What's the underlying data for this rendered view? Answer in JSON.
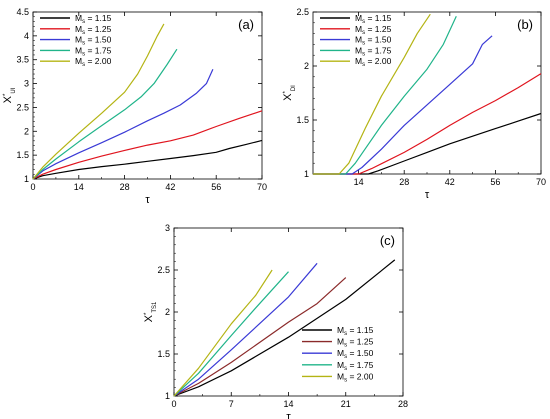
{
  "chart_data": [
    {
      "type": "line",
      "panel_label": "(a)",
      "ylabel": {
        "main": "X",
        "sup": "*",
        "sub": "UI"
      },
      "xlabel": "τ",
      "xlim": [
        0,
        70
      ],
      "ylim": [
        1,
        4.5
      ],
      "xticks": [
        0,
        14,
        28,
        42,
        56,
        70
      ],
      "yticks": [
        1,
        1.5,
        2,
        2.5,
        3,
        3.5,
        4,
        4.5
      ],
      "grid": false,
      "legend_position": "top-left",
      "series": [
        {
          "name": "1.15",
          "color": "#000000",
          "points": [
            [
              0,
              1.0
            ],
            [
              3,
              1.07
            ],
            [
              7,
              1.12
            ],
            [
              14,
              1.2
            ],
            [
              21,
              1.26
            ],
            [
              28,
              1.31
            ],
            [
              35,
              1.37
            ],
            [
              42,
              1.43
            ],
            [
              49,
              1.49
            ],
            [
              56,
              1.56
            ],
            [
              60,
              1.64
            ],
            [
              65,
              1.72
            ],
            [
              70,
              1.81
            ]
          ]
        },
        {
          "name": "1.25",
          "color": "#e0141e",
          "points": [
            [
              0,
              1.0
            ],
            [
              3,
              1.1
            ],
            [
              7,
              1.2
            ],
            [
              14,
              1.35
            ],
            [
              21,
              1.48
            ],
            [
              28,
              1.6
            ],
            [
              35,
              1.71
            ],
            [
              42,
              1.8
            ],
            [
              49,
              1.92
            ],
            [
              56,
              2.1
            ],
            [
              63,
              2.27
            ],
            [
              70,
              2.43
            ]
          ]
        },
        {
          "name": "1.50",
          "color": "#3a3ad6",
          "points": [
            [
              0,
              1.0
            ],
            [
              3,
              1.17
            ],
            [
              7,
              1.32
            ],
            [
              14,
              1.55
            ],
            [
              21,
              1.76
            ],
            [
              28,
              1.98
            ],
            [
              35,
              2.22
            ],
            [
              40,
              2.38
            ],
            [
              45,
              2.55
            ],
            [
              50,
              2.8
            ],
            [
              53,
              3.0
            ],
            [
              55,
              3.3
            ]
          ]
        },
        {
          "name": "1.75",
          "color": "#20b48a",
          "points": [
            [
              0,
              1.0
            ],
            [
              3,
              1.2
            ],
            [
              7,
              1.42
            ],
            [
              14,
              1.78
            ],
            [
              21,
              2.12
            ],
            [
              28,
              2.45
            ],
            [
              33,
              2.72
            ],
            [
              37,
              3.0
            ],
            [
              41,
              3.4
            ],
            [
              44,
              3.72
            ]
          ]
        },
        {
          "name": "2.00",
          "color": "#b4b414",
          "points": [
            [
              0,
              1.0
            ],
            [
              3,
              1.25
            ],
            [
              7,
              1.52
            ],
            [
              14,
              1.96
            ],
            [
              21,
              2.38
            ],
            [
              28,
              2.82
            ],
            [
              32,
              3.2
            ],
            [
              35,
              3.58
            ],
            [
              38,
              4.0
            ],
            [
              40,
              4.25
            ]
          ]
        }
      ]
    },
    {
      "type": "line",
      "panel_label": "(b)",
      "ylabel": {
        "main": "X",
        "sup": "*",
        "sub": "DI"
      },
      "xlabel": "τ",
      "xlim": [
        0,
        70
      ],
      "ylim": [
        1,
        2.5
      ],
      "xticks": [
        14,
        28,
        42,
        56,
        70
      ],
      "yticks": [
        1,
        1.5,
        2,
        2.5
      ],
      "grid": false,
      "legend_position": "top-left",
      "series": [
        {
          "name": "1.15",
          "color": "#000000",
          "points": [
            [
              0,
              1.0
            ],
            [
              17,
              1.0
            ],
            [
              20,
              1.03
            ],
            [
              28,
              1.12
            ],
            [
              35,
              1.2
            ],
            [
              42,
              1.28
            ],
            [
              49,
              1.35
            ],
            [
              56,
              1.42
            ],
            [
              63,
              1.49
            ],
            [
              70,
              1.56
            ]
          ]
        },
        {
          "name": "1.25",
          "color": "#e0141e",
          "points": [
            [
              0,
              1.0
            ],
            [
              14,
              1.0
            ],
            [
              18,
              1.05
            ],
            [
              28,
              1.2
            ],
            [
              35,
              1.32
            ],
            [
              42,
              1.45
            ],
            [
              49,
              1.57
            ],
            [
              56,
              1.68
            ],
            [
              63,
              1.8
            ],
            [
              70,
              1.93
            ]
          ]
        },
        {
          "name": "1.50",
          "color": "#3a3ad6",
          "points": [
            [
              0,
              1.0
            ],
            [
              12,
              1.0
            ],
            [
              15,
              1.06
            ],
            [
              21,
              1.23
            ],
            [
              28,
              1.45
            ],
            [
              35,
              1.64
            ],
            [
              42,
              1.83
            ],
            [
              49,
              2.02
            ],
            [
              52,
              2.2
            ],
            [
              55,
              2.28
            ]
          ]
        },
        {
          "name": "1.75",
          "color": "#20b48a",
          "points": [
            [
              0,
              1.0
            ],
            [
              10,
              1.0
            ],
            [
              13,
              1.1
            ],
            [
              21,
              1.45
            ],
            [
              28,
              1.72
            ],
            [
              35,
              1.97
            ],
            [
              40,
              2.2
            ],
            [
              44,
              2.46
            ]
          ]
        },
        {
          "name": "2.00",
          "color": "#b4b414",
          "points": [
            [
              0,
              1.0
            ],
            [
              8,
              1.0
            ],
            [
              11,
              1.1
            ],
            [
              16,
              1.42
            ],
            [
              21,
              1.72
            ],
            [
              28,
              2.08
            ],
            [
              32,
              2.3
            ],
            [
              36,
              2.48
            ]
          ]
        }
      ]
    },
    {
      "type": "line",
      "panel_label": "(c)",
      "ylabel": {
        "main": "X",
        "sup": "*",
        "sub": "TS1"
      },
      "xlabel": "τ",
      "xlim": [
        0,
        28
      ],
      "ylim": [
        1,
        3
      ],
      "xticks": [
        0,
        7,
        14,
        21,
        28
      ],
      "yticks": [
        1,
        1.5,
        2,
        2.5,
        3
      ],
      "grid": false,
      "legend_position": "bottom-right",
      "series": [
        {
          "name": "1.15",
          "color": "#000000",
          "points": [
            [
              0,
              1.0
            ],
            [
              3,
              1.11
            ],
            [
              7,
              1.3
            ],
            [
              14,
              1.7
            ],
            [
              21,
              2.15
            ],
            [
              27,
              2.62
            ]
          ]
        },
        {
          "name": "1.25",
          "color": "#8b2a2a",
          "points": [
            [
              0,
              1.0
            ],
            [
              3,
              1.15
            ],
            [
              7,
              1.4
            ],
            [
              14,
              1.88
            ],
            [
              17.5,
              2.1
            ],
            [
              21,
              2.41
            ]
          ]
        },
        {
          "name": "1.50",
          "color": "#3a3ad6",
          "points": [
            [
              0,
              1.0
            ],
            [
              3,
              1.2
            ],
            [
              7,
              1.55
            ],
            [
              14,
              2.18
            ],
            [
              17.5,
              2.58
            ]
          ]
        },
        {
          "name": "1.75",
          "color": "#20b48a",
          "points": [
            [
              0,
              1.0
            ],
            [
              3,
              1.27
            ],
            [
              7,
              1.72
            ],
            [
              10,
              2.05
            ],
            [
              14,
              2.48
            ]
          ]
        },
        {
          "name": "2.00",
          "color": "#b4b414",
          "points": [
            [
              0,
              1.0
            ],
            [
              3,
              1.33
            ],
            [
              7,
              1.86
            ],
            [
              10,
              2.2
            ],
            [
              12,
              2.5
            ]
          ]
        }
      ]
    }
  ],
  "legend_prefix": "M",
  "legend_prefix_sub": "s",
  "legend_eq": " = "
}
